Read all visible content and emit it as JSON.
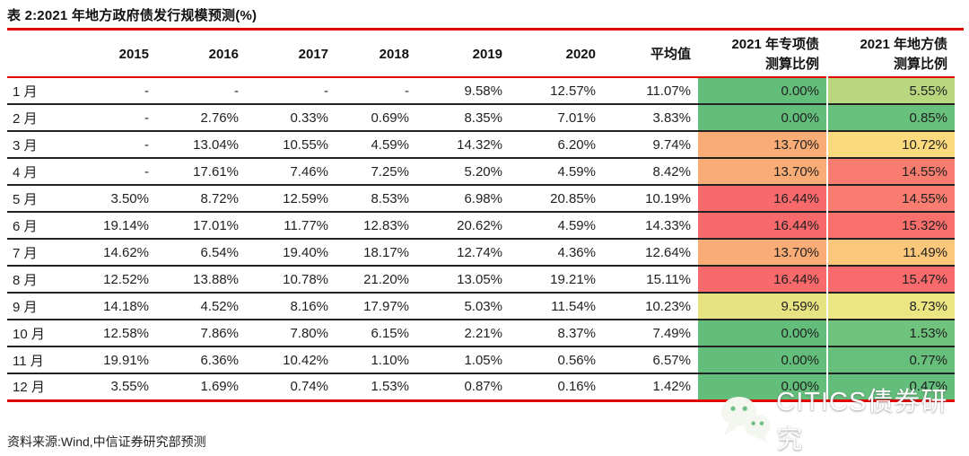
{
  "title": "表 2:2021 年地方政府债发行规模预测(%)",
  "source_note": "资料来源:Wind,中信证券研究部预测",
  "watermark": {
    "icon": "wechat-icon",
    "text": "CITICS债券研究"
  },
  "colors": {
    "rule_red": "#E10000",
    "row_border": "#222222",
    "text": "#1F1F1F",
    "watermark_text": "#FFFFFF",
    "scale_green": "#63BE7B",
    "scale_yellow": "#ECE682",
    "scale_orange": "#F9AC75",
    "scale_red": "#F8696B"
  },
  "table": {
    "header": {
      "month_blank": "",
      "years": [
        "2015",
        "2016",
        "2017",
        "2018",
        "2019",
        "2020"
      ],
      "average": "平均值",
      "special_bond": [
        "2021 年专项债",
        "测算比例"
      ],
      "local_bond": [
        "2021 年地方债",
        "测算比例"
      ]
    },
    "rows": [
      {
        "month": "1 月",
        "values": [
          "-",
          "-",
          "-",
          "-",
          "9.58%",
          "12.57%",
          "11.07%"
        ],
        "special": {
          "value": "0.00%",
          "color": "#63BE7B"
        },
        "local": {
          "value": "5.55%",
          "color": "#B8D77F"
        }
      },
      {
        "month": "2 月",
        "values": [
          "-",
          "2.76%",
          "0.33%",
          "0.69%",
          "8.35%",
          "7.01%",
          "3.83%"
        ],
        "special": {
          "value": "0.00%",
          "color": "#63BE7B"
        },
        "local": {
          "value": "0.85%",
          "color": "#67C07B"
        }
      },
      {
        "month": "3 月",
        "values": [
          "-",
          "13.04%",
          "10.55%",
          "4.59%",
          "14.32%",
          "6.20%",
          "9.74%"
        ],
        "special": {
          "value": "13.70%",
          "color": "#F9AC75"
        },
        "local": {
          "value": "10.72%",
          "color": "#FBD97D"
        }
      },
      {
        "month": "4 月",
        "values": [
          "-",
          "17.61%",
          "7.46%",
          "7.25%",
          "5.20%",
          "4.59%",
          "8.42%"
        ],
        "special": {
          "value": "13.70%",
          "color": "#F9AC75"
        },
        "local": {
          "value": "14.55%",
          "color": "#F87D70"
        }
      },
      {
        "month": "5 月",
        "values": [
          "3.50%",
          "8.72%",
          "12.59%",
          "8.53%",
          "6.98%",
          "20.85%",
          "10.19%"
        ],
        "special": {
          "value": "16.44%",
          "color": "#F8696B"
        },
        "local": {
          "value": "14.55%",
          "color": "#F87D70"
        }
      },
      {
        "month": "6 月",
        "values": [
          "19.14%",
          "17.01%",
          "11.77%",
          "12.83%",
          "20.62%",
          "4.59%",
          "14.33%"
        ],
        "special": {
          "value": "16.44%",
          "color": "#F8696B"
        },
        "local": {
          "value": "15.32%",
          "color": "#F86F6C"
        }
      },
      {
        "month": "7 月",
        "values": [
          "14.62%",
          "6.54%",
          "19.40%",
          "18.17%",
          "12.74%",
          "4.36%",
          "12.64%"
        ],
        "special": {
          "value": "13.70%",
          "color": "#F9AC75"
        },
        "local": {
          "value": "11.49%",
          "color": "#FBC77B"
        }
      },
      {
        "month": "8 月",
        "values": [
          "12.52%",
          "13.88%",
          "10.78%",
          "21.20%",
          "13.05%",
          "19.21%",
          "15.11%"
        ],
        "special": {
          "value": "16.44%",
          "color": "#F8696B"
        },
        "local": {
          "value": "15.47%",
          "color": "#F86A6B"
        }
      },
      {
        "month": "9 月",
        "values": [
          "14.18%",
          "4.52%",
          "8.16%",
          "17.97%",
          "5.03%",
          "11.54%",
          "10.23%"
        ],
        "special": {
          "value": "9.59%",
          "color": "#E7E383"
        },
        "local": {
          "value": "8.73%",
          "color": "#ECE682"
        }
      },
      {
        "month": "10 月",
        "values": [
          "12.58%",
          "7.86%",
          "7.80%",
          "6.15%",
          "2.21%",
          "8.37%",
          "7.49%"
        ],
        "special": {
          "value": "0.00%",
          "color": "#63BE7B"
        },
        "local": {
          "value": "1.53%",
          "color": "#70C37D"
        }
      },
      {
        "month": "11 月",
        "values": [
          "19.91%",
          "6.36%",
          "10.42%",
          "1.10%",
          "1.05%",
          "0.56%",
          "6.57%"
        ],
        "special": {
          "value": "0.00%",
          "color": "#63BE7B"
        },
        "local": {
          "value": "0.77%",
          "color": "#66BF7B"
        }
      },
      {
        "month": "12 月",
        "values": [
          "3.55%",
          "1.69%",
          "0.74%",
          "1.53%",
          "0.87%",
          "0.16%",
          "1.42%"
        ],
        "special": {
          "value": "0.00%",
          "color": "#63BE7B"
        },
        "local": {
          "value": "0.47%",
          "color": "#63BE7B"
        }
      }
    ]
  }
}
